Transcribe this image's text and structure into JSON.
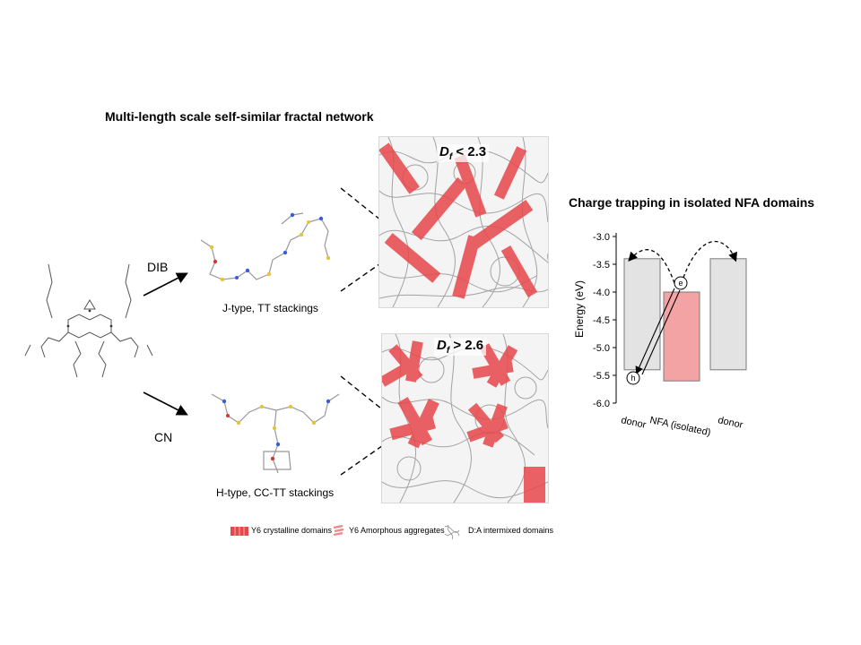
{
  "figure": {
    "left_title": "Multi-length scale self-similar fractal network",
    "right_title": "Charge trapping in isolated NFA domains"
  },
  "pathways": {
    "top": {
      "solvent": "DIB",
      "caption": "J-type, TT stackings",
      "df_symbol": "D",
      "df_sub": "f",
      "df_rel": " < 2.3"
    },
    "bottom": {
      "solvent": "CN",
      "caption": "H-type, CC-TT stackings",
      "df_symbol": "D",
      "df_sub": "f",
      "df_rel": " > 2.6"
    }
  },
  "legend": {
    "items": [
      {
        "label": "Y6 crystalline domains",
        "icon": "stacked-fibril-icon",
        "color": "#e8474b"
      },
      {
        "label": "Y6 Amorphous aggregates",
        "icon": "loose-aggregate-icon",
        "color": "#ef8a8c"
      },
      {
        "label": "D:A intermixed domains",
        "icon": "tangled-network-icon",
        "color": "#8a8a8a"
      }
    ]
  },
  "chart_data": {
    "type": "bar",
    "ylabel": "Energy (eV)",
    "ylim": [
      -6.0,
      -2.9
    ],
    "yticks": [
      "-3.0",
      "-3.5",
      "-4.0",
      "-4.5",
      "-5.0",
      "-5.5",
      "-6.0"
    ],
    "ytick_values": [
      -3.0,
      -3.5,
      -4.0,
      -4.5,
      -5.0,
      -5.5,
      -6.0
    ],
    "categories": [
      "donor",
      "NFA (isolated)",
      "donor"
    ],
    "bars": [
      {
        "label": "donor",
        "top": -3.4,
        "bottom": -5.4,
        "color": "#e3e3e3"
      },
      {
        "label": "NFA (isolated)",
        "top": -4.0,
        "bottom": -5.6,
        "color": "#f4a3a5"
      },
      {
        "label": "donor",
        "top": -3.4,
        "bottom": -5.4,
        "color": "#e3e3e3"
      }
    ],
    "carriers": {
      "electron": "e",
      "hole": "h"
    },
    "colors": {
      "donor": "#e3e3e3",
      "nfa": "#f4a3a5",
      "edge": "#7a7a7a"
    }
  }
}
